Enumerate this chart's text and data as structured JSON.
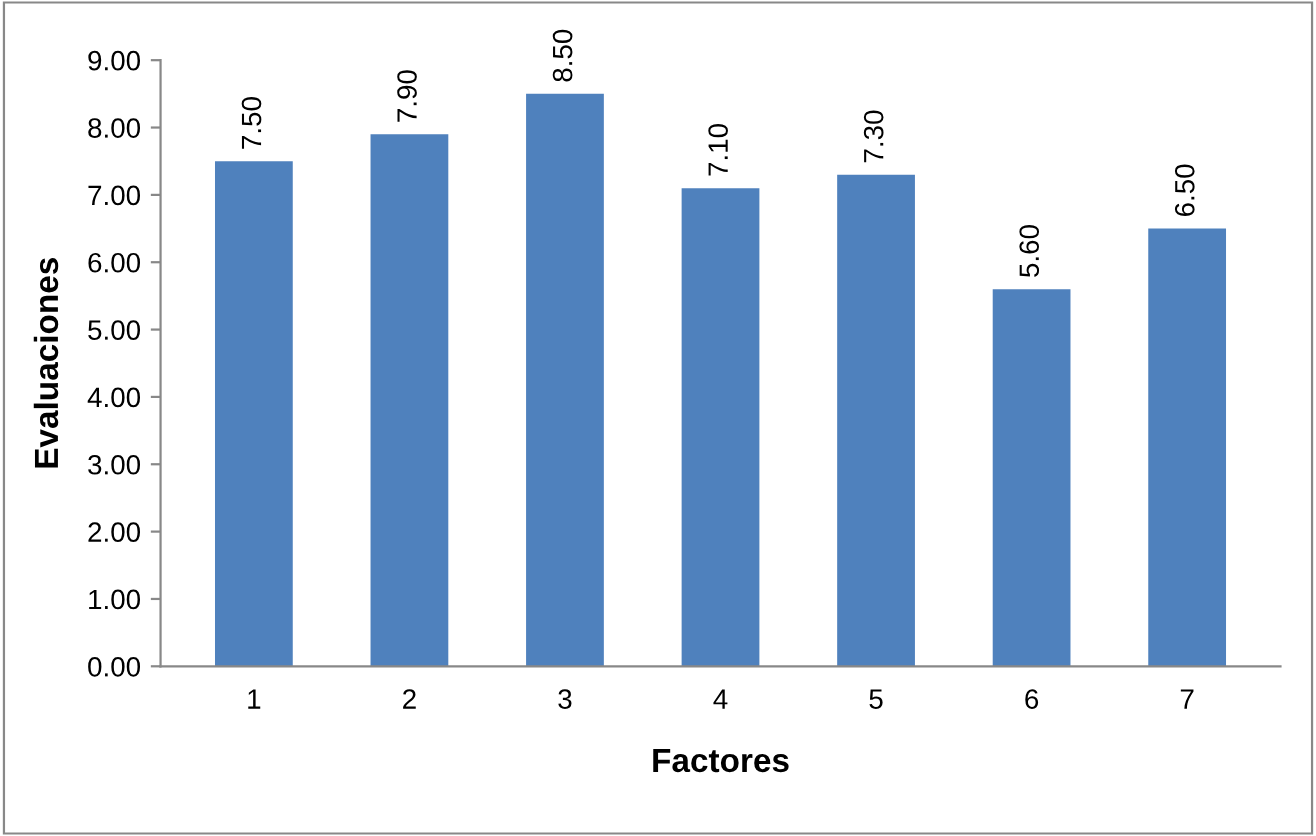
{
  "chart_data": {
    "type": "bar",
    "xlabel": "Factores",
    "ylabel": "Evaluaciones",
    "categories": [
      "1",
      "2",
      "3",
      "4",
      "5",
      "6",
      "7"
    ],
    "values": [
      7.5,
      7.9,
      8.5,
      7.1,
      7.3,
      5.6,
      6.5
    ],
    "value_labels": [
      "7.50",
      "7.90",
      "8.50",
      "7.10",
      "7.30",
      "5.60",
      "6.50"
    ],
    "color": "#4f81bd",
    "ylim": [
      0,
      9
    ],
    "yticks": [
      {
        "value": 0,
        "label": "0.00"
      },
      {
        "value": 1,
        "label": "1.00"
      },
      {
        "value": 2,
        "label": "2.00"
      },
      {
        "value": 3,
        "label": "3.00"
      },
      {
        "value": 4,
        "label": "4.00"
      },
      {
        "value": 5,
        "label": "5.00"
      },
      {
        "value": 6,
        "label": "6.00"
      },
      {
        "value": 7,
        "label": "7.00"
      },
      {
        "value": 8,
        "label": "8.00"
      },
      {
        "value": 9,
        "label": "9.00"
      }
    ],
    "grid": false,
    "legend": false
  }
}
